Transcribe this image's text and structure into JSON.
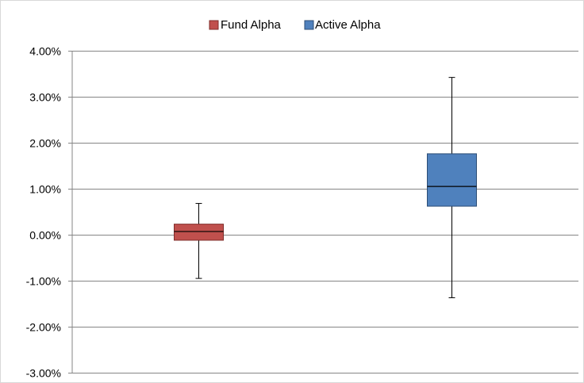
{
  "chart_data": {
    "type": "box",
    "legend": {
      "position": "top",
      "entries": [
        {
          "label": "Fund Alpha",
          "color": "#c0504d"
        },
        {
          "label": "Active Alpha",
          "color": "#4f81bd"
        }
      ]
    },
    "y_axis": {
      "min": -3.0,
      "max": 4.0,
      "step": 1.0,
      "unit": "%",
      "tick_labels": [
        "4.00%",
        "3.00%",
        "2.00%",
        "1.00%",
        "0.00%",
        "-1.00%",
        "-2.00%",
        "-3.00%"
      ]
    },
    "grid": true,
    "series": [
      {
        "name": "Fund Alpha",
        "color": "#c0504d",
        "min": -0.95,
        "q1": -0.12,
        "median": 0.07,
        "q3": 0.23,
        "max": 0.68
      },
      {
        "name": "Active Alpha",
        "color": "#4f81bd",
        "min": -1.37,
        "q1": 0.62,
        "median": 1.05,
        "q3": 1.76,
        "max": 3.42
      }
    ]
  }
}
